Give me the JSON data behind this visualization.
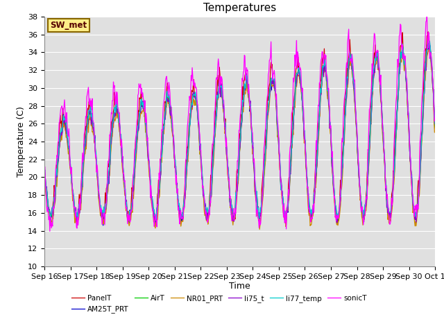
{
  "title": "Temperatures",
  "xlabel": "Time",
  "ylabel": "Temperature (C)",
  "ylim": [
    10,
    38
  ],
  "yticks": [
    10,
    12,
    14,
    16,
    18,
    20,
    22,
    24,
    26,
    28,
    30,
    32,
    34,
    36,
    38
  ],
  "series_names": [
    "PanelT",
    "AM25T_PRT",
    "AirT",
    "NR01_PRT",
    "li75_t",
    "li77_temp",
    "sonicT"
  ],
  "series_colors": [
    "#cc0000",
    "#0000cc",
    "#00cc00",
    "#cc8800",
    "#8800cc",
    "#00cccc",
    "#ff00ff"
  ],
  "x_tick_labels": [
    "Sep 16",
    "Sep 17",
    "Sep 18",
    "Sep 19",
    "Sep 20",
    "Sep 21",
    "Sep 22",
    "Sep 23",
    "Sep 24",
    "Sep 25",
    "Sep 26",
    "Sep 27",
    "Sep 28",
    "Sep 29",
    "Sep 30",
    "Oct 1"
  ],
  "annotation_text": "SW_met",
  "annotation_bg": "#ffee88",
  "annotation_border": "#886600",
  "plot_bg": "#e0e0e0",
  "fig_bg": "#ffffff",
  "grid_color": "#ffffff",
  "title_fontsize": 11,
  "label_fontsize": 9,
  "tick_fontsize": 8
}
